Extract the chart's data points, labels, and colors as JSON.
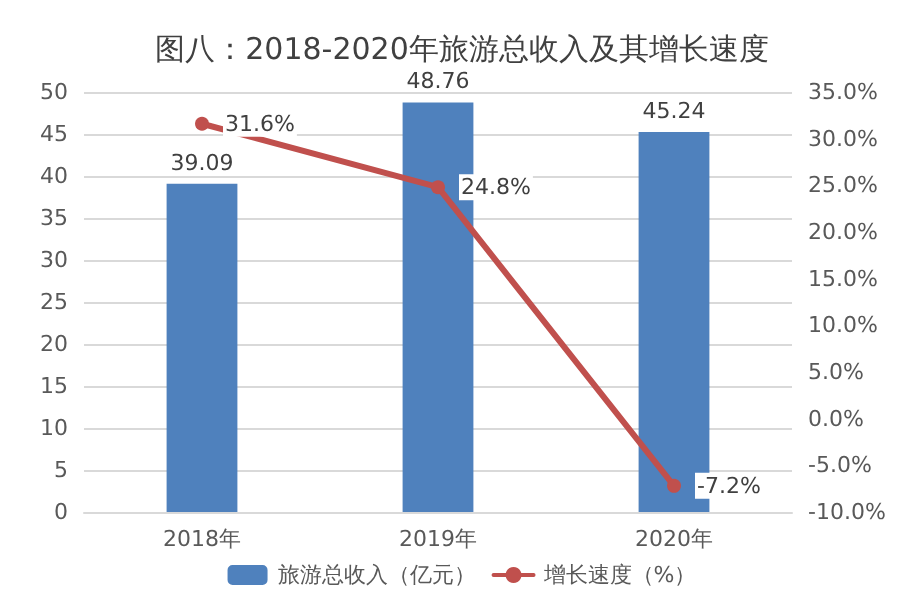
{
  "chart_data": {
    "type": "bar",
    "title": "图八：2018-2020年旅游总收入及其增长速度",
    "categories": [
      "2018年",
      "2019年",
      "2020年"
    ],
    "series": [
      {
        "name": "旅游总收入（亿元）",
        "color": "#4f81bd",
        "values": [
          39.09,
          48.76,
          45.24
        ],
        "value_labels": [
          "39.09",
          "48.76",
          "45.24"
        ]
      },
      {
        "name": "增长速度（%）",
        "type": "line",
        "axis": "y2",
        "color": "#c0504d",
        "values": [
          31.6,
          24.8,
          -7.2
        ],
        "value_labels": [
          "31.6%",
          "24.8%",
          "-7.2%"
        ]
      }
    ],
    "ylim": [
      0,
      50
    ],
    "yticks": [
      0,
      5,
      10,
      15,
      20,
      25,
      30,
      35,
      40,
      45,
      50
    ],
    "y2lim": [
      -10,
      35
    ],
    "y2ticks": [
      {
        "value": -10,
        "label": "-10.0%"
      },
      {
        "value": -5,
        "label": "-5.0%"
      },
      {
        "value": 0,
        "label": "0.0%"
      },
      {
        "value": 5,
        "label": "5.0%"
      },
      {
        "value": 10,
        "label": "10.0%"
      },
      {
        "value": 15,
        "label": "15.0%"
      },
      {
        "value": 20,
        "label": "20.0%"
      },
      {
        "value": 25,
        "label": "25.0%"
      },
      {
        "value": 30,
        "label": "30.0%"
      },
      {
        "value": 35,
        "label": "35.0%"
      }
    ],
    "grid": "y",
    "legend": "bottom",
    "marker": "circle",
    "line_style": "solid"
  }
}
